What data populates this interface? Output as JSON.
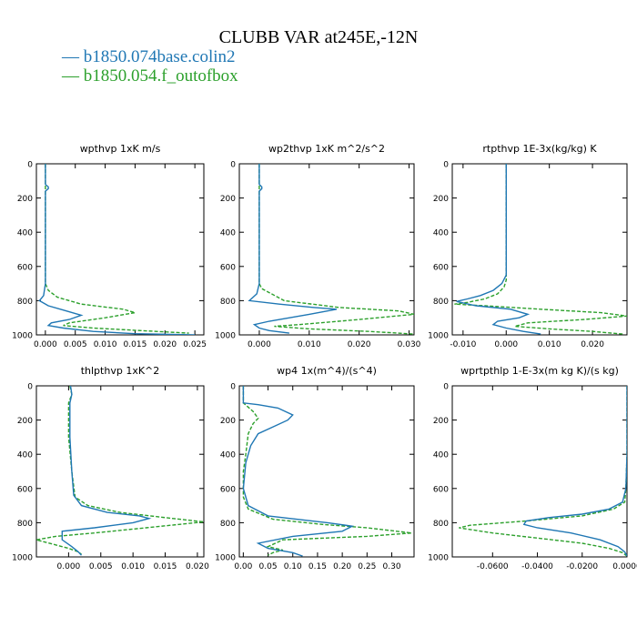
{
  "title": "CLUBB VAR at245E,-12N",
  "legend": [
    {
      "label": "b1850.074base.colin2",
      "color": "#1f77b4",
      "dash": "solid"
    },
    {
      "label": "b1850.054.f_outofbox",
      "color": "#2ca02c",
      "dash": "dashed"
    }
  ],
  "chart_data": [
    {
      "type": "line",
      "title": "wpthvp  1xK m/s",
      "ylim": [
        1000,
        0
      ],
      "xlim": [
        -0.0015,
        0.0265
      ],
      "yticks": [
        0,
        200,
        400,
        600,
        800,
        1000
      ],
      "yticklabels": [
        "0",
        "200",
        "400",
        "600",
        "800",
        "1000"
      ],
      "xticks": [
        0,
        0.005,
        0.01,
        0.015,
        0.02,
        0.025
      ],
      "xticklabels": [
        "0.000",
        "0.005",
        "0.010",
        "0.015",
        "0.020",
        "0.025"
      ],
      "series": [
        {
          "name": "b1850.074base.colin2",
          "points": [
            [
              0,
              0
            ],
            [
              0,
              120
            ],
            [
              0.0005,
              135
            ],
            [
              0.0005,
              145
            ],
            [
              0,
              160
            ],
            [
              0,
              500
            ],
            [
              0,
              700
            ],
            [
              -0.0003,
              770
            ],
            [
              -0.001,
              800
            ],
            [
              0.0005,
              830
            ],
            [
              0.0035,
              860
            ],
            [
              0.006,
              885
            ],
            [
              0.004,
              910
            ],
            [
              0.001,
              930
            ],
            [
              0.0005,
              945
            ],
            [
              0.003,
              960
            ],
            [
              0.008,
              980
            ],
            [
              0.015,
              993
            ],
            [
              0.025,
              1000
            ]
          ]
        },
        {
          "name": "b1850.054.f_outofbox",
          "points": [
            [
              0,
              0
            ],
            [
              0,
              500
            ],
            [
              0,
              700
            ],
            [
              0.0005,
              740
            ],
            [
              0.002,
              780
            ],
            [
              0.006,
              820
            ],
            [
              0.013,
              850
            ],
            [
              0.015,
              870
            ],
            [
              0.01,
              900
            ],
            [
              0.004,
              930
            ],
            [
              0.003,
              945
            ],
            [
              0.008,
              960
            ],
            [
              0.016,
              975
            ],
            [
              0.024,
              990
            ]
          ]
        }
      ]
    },
    {
      "type": "line",
      "title": "wp2thvp  1xK m^2/s^2",
      "ylim": [
        1000,
        0
      ],
      "xlim": [
        -0.004,
        0.031
      ],
      "yticks": [
        0,
        200,
        400,
        600,
        800,
        1000
      ],
      "yticklabels": [
        "0",
        "200",
        "400",
        "600",
        "800",
        "1000"
      ],
      "xticks": [
        0,
        0.01,
        0.02,
        0.03
      ],
      "xticklabels": [
        "0.000",
        "0.010",
        "0.020",
        "0.030"
      ],
      "series": [
        {
          "name": "b1850.074base.colin2",
          "points": [
            [
              0,
              0
            ],
            [
              0,
              120
            ],
            [
              0.0005,
              135
            ],
            [
              0.0005,
              145
            ],
            [
              0,
              160
            ],
            [
              0,
              500
            ],
            [
              0,
              700
            ],
            [
              -0.0005,
              760
            ],
            [
              -0.002,
              800
            ],
            [
              0.004,
              820
            ],
            [
              0.011,
              840
            ],
            [
              0.0155,
              850
            ],
            [
              0.01,
              880
            ],
            [
              0.002,
              920
            ],
            [
              -0.001,
              940
            ],
            [
              0,
              960
            ],
            [
              0.002,
              975
            ],
            [
              0.006,
              990
            ]
          ]
        },
        {
          "name": "b1850.054.f_outofbox",
          "points": [
            [
              0,
              0
            ],
            [
              0,
              500
            ],
            [
              0,
              700
            ],
            [
              0.0005,
              730
            ],
            [
              0.005,
              800
            ],
            [
              0.016,
              840
            ],
            [
              0.028,
              860
            ],
            [
              0.031,
              880
            ],
            [
              0.02,
              910
            ],
            [
              0.008,
              940
            ],
            [
              0.003,
              950
            ],
            [
              0.01,
              965
            ],
            [
              0.022,
              980
            ],
            [
              0.031,
              995
            ]
          ]
        }
      ]
    },
    {
      "type": "line",
      "title": "rtpthvp  1E-3x(kg/kg) K",
      "ylim": [
        1000,
        0
      ],
      "xlim": [
        -0.0125,
        0.028
      ],
      "yticks": [
        0,
        200,
        400,
        600,
        800,
        1000
      ],
      "yticklabels": [
        "0",
        "200",
        "400",
        "600",
        "800",
        "1000"
      ],
      "xticks": [
        -0.01,
        0,
        0.01,
        0.02
      ],
      "xticklabels": [
        "-0.010",
        "0.000",
        "0.010",
        "0.020"
      ],
      "series": [
        {
          "name": "b1850.074base.colin2",
          "points": [
            [
              0,
              0
            ],
            [
              0,
              500
            ],
            [
              0,
              650
            ],
            [
              -0.001,
              700
            ],
            [
              -0.003,
              740
            ],
            [
              -0.006,
              770
            ],
            [
              -0.009,
              790
            ],
            [
              -0.0115,
              805
            ],
            [
              -0.007,
              830
            ],
            [
              0.001,
              850
            ],
            [
              0.005,
              880
            ],
            [
              0.003,
              900
            ],
            [
              -0.002,
              920
            ],
            [
              -0.003,
              940
            ],
            [
              0,
              960
            ],
            [
              0.004,
              980
            ],
            [
              0.008,
              995
            ]
          ]
        },
        {
          "name": "b1850.054.f_outofbox",
          "points": [
            [
              0,
              0
            ],
            [
              0,
              500
            ],
            [
              0,
              680
            ],
            [
              -0.0005,
              720
            ],
            [
              -0.002,
              760
            ],
            [
              -0.005,
              790
            ],
            [
              -0.009,
              810
            ],
            [
              -0.012,
              820
            ],
            [
              -0.005,
              830
            ],
            [
              0.008,
              850
            ],
            [
              0.022,
              870
            ],
            [
              0.028,
              890
            ],
            [
              0.018,
              910
            ],
            [
              0.005,
              930
            ],
            [
              0.002,
              950
            ],
            [
              0.01,
              965
            ],
            [
              0.02,
              980
            ],
            [
              0.027,
              995
            ]
          ]
        }
      ]
    },
    {
      "type": "line",
      "title": "thlpthvp  1xK^2",
      "ylim": [
        1000,
        0
      ],
      "xlim": [
        -0.005,
        0.021
      ],
      "yticks": [
        0,
        200,
        400,
        600,
        800,
        1000
      ],
      "yticklabels": [
        "0",
        "200",
        "400",
        "600",
        "800",
        "1000"
      ],
      "xticks": [
        0,
        0.005,
        0.01,
        0.015,
        0.02
      ],
      "xticklabels": [
        "0.000",
        "0.005",
        "0.010",
        "0.015",
        "0.020"
      ],
      "series": [
        {
          "name": "b1850.074base.colin2",
          "points": [
            [
              0.0003,
              0
            ],
            [
              0.0005,
              50
            ],
            [
              0.0002,
              100
            ],
            [
              0.0002,
              300
            ],
            [
              0.0005,
              500
            ],
            [
              0.0008,
              640
            ],
            [
              0.002,
              700
            ],
            [
              0.006,
              740
            ],
            [
              0.011,
              760
            ],
            [
              0.0125,
              775
            ],
            [
              0.01,
              800
            ],
            [
              0.004,
              830
            ],
            [
              -0.001,
              850
            ],
            [
              -0.001,
              900
            ],
            [
              0.0005,
              940
            ],
            [
              0.0015,
              970
            ],
            [
              0.002,
              990
            ]
          ]
        },
        {
          "name": "b1850.054.f_outofbox",
          "points": [
            [
              0.0002,
              0
            ],
            [
              0.0005,
              50
            ],
            [
              0,
              100
            ],
            [
              0,
              300
            ],
            [
              0.0005,
              500
            ],
            [
              0.001,
              650
            ],
            [
              0.003,
              700
            ],
            [
              0.008,
              740
            ],
            [
              0.015,
              770
            ],
            [
              0.021,
              795
            ],
            [
              0.012,
              830
            ],
            [
              0.004,
              860
            ],
            [
              -0.002,
              880
            ],
            [
              -0.005,
              900
            ],
            [
              -0.002,
              930
            ],
            [
              0,
              950
            ],
            [
              0.0015,
              970
            ],
            [
              0.002,
              985
            ]
          ]
        }
      ]
    },
    {
      "type": "line",
      "title": "wp4  1x(m^4)/(s^4)",
      "ylim": [
        1000,
        0
      ],
      "xlim": [
        -0.008,
        0.345
      ],
      "yticks": [
        0,
        200,
        400,
        600,
        800,
        1000
      ],
      "yticklabels": [
        "0",
        "200",
        "400",
        "600",
        "800",
        "1000"
      ],
      "xticks": [
        0,
        0.05,
        0.1,
        0.15,
        0.2,
        0.25,
        0.3
      ],
      "xticklabels": [
        "0.00",
        "0.05",
        "0.10",
        "0.15",
        "0.20",
        "0.25",
        "0.30"
      ],
      "series": [
        {
          "name": "b1850.074base.colin2",
          "points": [
            [
              0,
              0
            ],
            [
              0,
              100
            ],
            [
              0.03,
              110
            ],
            [
              0.07,
              130
            ],
            [
              0.1,
              170
            ],
            [
              0.09,
              200
            ],
            [
              0.06,
              240
            ],
            [
              0.03,
              280
            ],
            [
              0.015,
              350
            ],
            [
              0.005,
              450
            ],
            [
              0,
              600
            ],
            [
              0.01,
              700
            ],
            [
              0.05,
              760
            ],
            [
              0.17,
              800
            ],
            [
              0.22,
              820
            ],
            [
              0.2,
              850
            ],
            [
              0.1,
              880
            ],
            [
              0.03,
              920
            ],
            [
              0.05,
              950
            ],
            [
              0.1,
              975
            ],
            [
              0.12,
              995
            ]
          ]
        },
        {
          "name": "b1850.054.f_outofbox",
          "points": [
            [
              0,
              0
            ],
            [
              0,
              100
            ],
            [
              0.02,
              150
            ],
            [
              0.03,
              190
            ],
            [
              0.02,
              220
            ],
            [
              0.01,
              280
            ],
            [
              0.005,
              400
            ],
            [
              0,
              500
            ],
            [
              0,
              650
            ],
            [
              0.01,
              720
            ],
            [
              0.06,
              780
            ],
            [
              0.16,
              810
            ],
            [
              0.25,
              830
            ],
            [
              0.34,
              860
            ],
            [
              0.25,
              880
            ],
            [
              0.08,
              900
            ],
            [
              0.05,
              940
            ],
            [
              0.08,
              960
            ],
            [
              0.06,
              975
            ],
            [
              0.05,
              990
            ]
          ]
        }
      ]
    },
    {
      "type": "line",
      "title": "wprtpthlp  1-E-3x(m kg K)/(s kg)",
      "ylim": [
        1000,
        0
      ],
      "xlim": [
        -0.078,
        0
      ],
      "yticks": [
        0,
        200,
        400,
        600,
        800,
        1000
      ],
      "yticklabels": [
        "0",
        "200",
        "400",
        "600",
        "800",
        "1000"
      ],
      "xticks": [
        -0.06,
        -0.04,
        -0.02,
        0
      ],
      "xticklabels": [
        "-0.0600",
        "-0.0400",
        "-0.0200",
        "0.0000"
      ],
      "series": [
        {
          "name": "b1850.074base.colin2",
          "points": [
            [
              0,
              0
            ],
            [
              0,
              400
            ],
            [
              -0.0005,
              600
            ],
            [
              -0.002,
              680
            ],
            [
              -0.008,
              720
            ],
            [
              -0.02,
              750
            ],
            [
              -0.035,
              770
            ],
            [
              -0.045,
              790
            ],
            [
              -0.046,
              810
            ],
            [
              -0.04,
              830
            ],
            [
              -0.025,
              860
            ],
            [
              -0.012,
              900
            ],
            [
              -0.004,
              940
            ],
            [
              -0.001,
              970
            ],
            [
              0,
              995
            ]
          ]
        },
        {
          "name": "b1850.054.f_outofbox",
          "points": [
            [
              0,
              0
            ],
            [
              0,
              400
            ],
            [
              -0.0005,
              600
            ],
            [
              -0.001,
              680
            ],
            [
              -0.006,
              720
            ],
            [
              -0.02,
              760
            ],
            [
              -0.045,
              790
            ],
            [
              -0.07,
              815
            ],
            [
              -0.075,
              830
            ],
            [
              -0.06,
              860
            ],
            [
              -0.04,
              890
            ],
            [
              -0.02,
              920
            ],
            [
              -0.008,
              950
            ],
            [
              -0.002,
              975
            ],
            [
              0,
              995
            ]
          ]
        }
      ]
    }
  ]
}
